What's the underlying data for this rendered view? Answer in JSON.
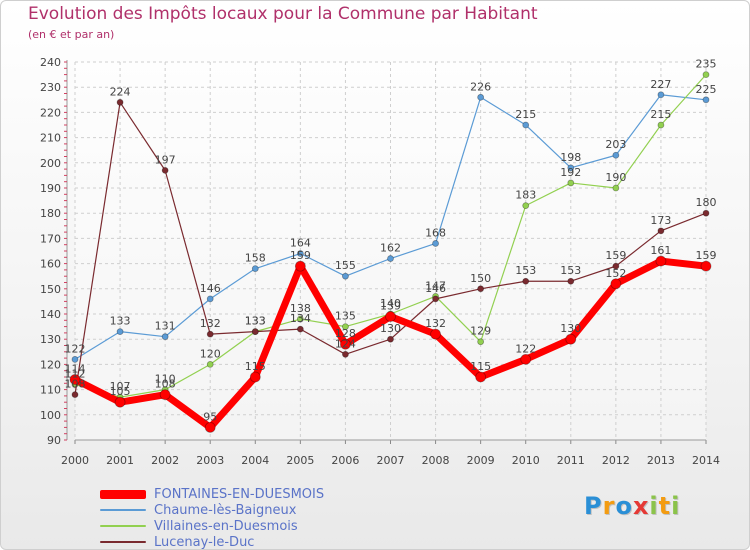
{
  "chart_data": {
    "type": "line",
    "title": "Evolution des Impôts locaux pour la Commune par Habitant",
    "subtitle": "(en € et par an)",
    "x": [
      "2000",
      "2001",
      "2002",
      "2003",
      "2004",
      "2005",
      "2006",
      "2007",
      "2008",
      "2009",
      "2010",
      "2011",
      "2012",
      "2013",
      "2014"
    ],
    "yticks": [
      90,
      100,
      110,
      120,
      130,
      140,
      150,
      160,
      170,
      180,
      190,
      200,
      210,
      220,
      230,
      240
    ],
    "ylim": [
      90,
      240
    ],
    "grid": true,
    "series": [
      {
        "name": "Chaume-lès-Baigneux",
        "color": "#5b9bd5",
        "values": [
          122,
          133,
          131,
          146,
          158,
          164,
          155,
          162,
          168,
          226,
          215,
          198,
          203,
          227,
          225
        ]
      },
      {
        "name": "Villaines-en-Duesmois",
        "color": "#92d050",
        "values": [
          112,
          107,
          110,
          120,
          133,
          138,
          135,
          140,
          147,
          129,
          183,
          192,
          190,
          215,
          235
        ]
      },
      {
        "name": "Lucenay-le-Duc",
        "color": "#7a2a2f",
        "values": [
          108,
          224,
          197,
          132,
          133,
          134,
          124,
          130,
          146,
          150,
          153,
          153,
          159,
          173,
          180
        ]
      },
      {
        "name": "FONTAINES-EN-DUESMOIS",
        "color": "#ff0000",
        "values": [
          114,
          105,
          108,
          95,
          115,
          159,
          128,
          139,
          132,
          115,
          122,
          130,
          152,
          161,
          159
        ]
      }
    ]
  },
  "legend": [
    {
      "label": "FONTAINES-EN-DUESMOIS",
      "color": "#ff0000"
    },
    {
      "label": "Chaume-lès-Baigneux",
      "color": "#5b9bd5"
    },
    {
      "label": "Villaines-en-Duesmois",
      "color": "#92d050"
    },
    {
      "label": "Lucenay-le-Duc",
      "color": "#7a2a2f"
    }
  ],
  "brand": {
    "letters": [
      "P",
      "r",
      "o",
      "x",
      "i",
      "t",
      "i"
    ],
    "colors": [
      "#2a8fd6",
      "#f39c12",
      "#2a8fd6",
      "#e53935",
      "#8bc34a",
      "#f39c12",
      "#8bc34a"
    ]
  }
}
